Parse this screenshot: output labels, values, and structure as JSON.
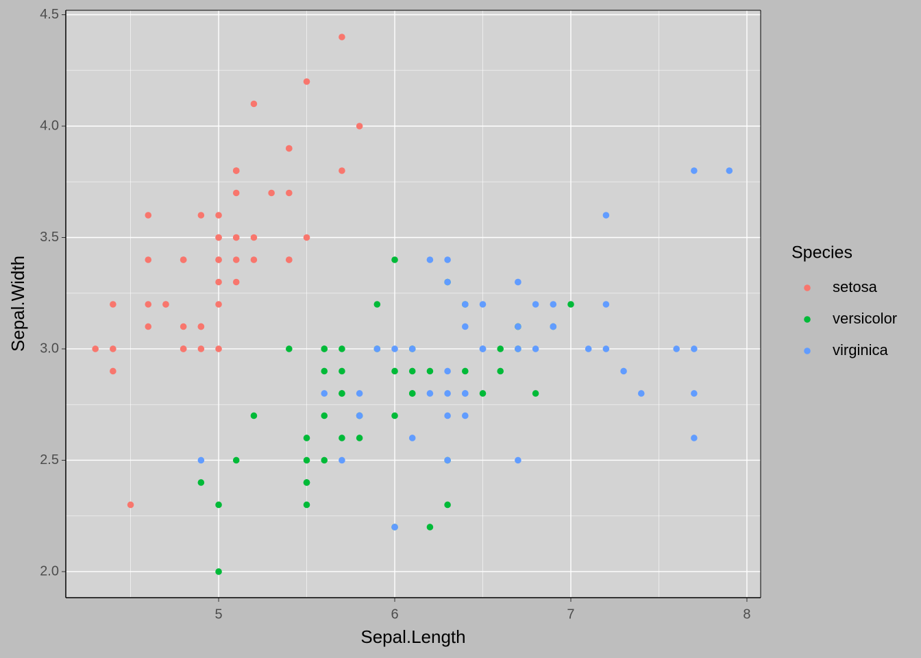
{
  "chart_data": {
    "type": "scatter",
    "x_label": "Sepal.Length",
    "y_label": "Sepal.Width",
    "legend_title": "Species",
    "xlim": [
      4.132,
      8.078
    ],
    "ylim": [
      1.883,
      4.52
    ],
    "xticks": [
      5,
      6,
      7,
      8
    ],
    "yticks": [
      {
        "value": 2,
        "label": "2.0"
      },
      {
        "value": 2.5,
        "label": "2.5"
      },
      {
        "value": 3,
        "label": "3.0"
      },
      {
        "value": 3.5,
        "label": "3.5"
      },
      {
        "value": 4,
        "label": "4.0"
      },
      {
        "value": 4.5,
        "label": "4.5"
      }
    ],
    "grid": true,
    "legend": "right",
    "series": [
      {
        "name": "setosa",
        "color": "#F8766D",
        "x": [
          5.1,
          4.9,
          4.7,
          4.6,
          5.0,
          5.4,
          4.6,
          5.0,
          4.4,
          4.9,
          5.4,
          4.8,
          4.8,
          4.3,
          5.8,
          5.7,
          5.4,
          5.1,
          5.7,
          5.1,
          5.4,
          5.1,
          4.6,
          5.1,
          4.8,
          5.0,
          5.0,
          5.2,
          5.2,
          4.7,
          4.8,
          5.4,
          5.2,
          5.5,
          4.9,
          5.0,
          5.5,
          4.9,
          4.4,
          5.1,
          5.0,
          4.5,
          4.4,
          5.0,
          5.1,
          4.8,
          5.1,
          4.6,
          5.3,
          5.0
        ],
        "values": [
          3.5,
          3.0,
          3.2,
          3.1,
          3.6,
          3.9,
          3.4,
          3.4,
          2.9,
          3.1,
          3.7,
          3.4,
          3.0,
          3.0,
          4.0,
          4.4,
          3.9,
          3.5,
          3.8,
          3.8,
          3.4,
          3.7,
          3.6,
          3.3,
          3.4,
          3.0,
          3.4,
          3.5,
          3.4,
          3.2,
          3.1,
          3.4,
          4.1,
          4.2,
          3.1,
          3.2,
          3.5,
          3.6,
          3.0,
          3.4,
          3.5,
          2.3,
          3.2,
          3.5,
          3.8,
          3.0,
          3.8,
          3.2,
          3.7,
          3.3
        ]
      },
      {
        "name": "versicolor",
        "color": "#00BA38",
        "x": [
          7.0,
          6.4,
          6.9,
          5.5,
          6.5,
          5.7,
          6.3,
          4.9,
          6.6,
          5.2,
          5.0,
          5.9,
          6.0,
          6.1,
          5.6,
          6.7,
          5.6,
          5.8,
          6.2,
          5.6,
          5.9,
          6.1,
          6.3,
          6.1,
          6.4,
          6.6,
          6.8,
          6.7,
          6.0,
          5.7,
          5.5,
          5.5,
          5.8,
          6.0,
          5.4,
          6.0,
          6.7,
          6.3,
          5.6,
          5.5,
          5.5,
          6.1,
          5.8,
          5.0,
          5.6,
          5.7,
          5.7,
          6.2,
          5.1,
          5.7
        ],
        "values": [
          3.2,
          3.2,
          3.1,
          2.3,
          2.8,
          2.8,
          3.3,
          2.4,
          2.9,
          2.7,
          2.0,
          3.0,
          2.2,
          2.9,
          2.9,
          3.1,
          3.0,
          2.7,
          2.2,
          2.5,
          3.2,
          2.8,
          2.5,
          2.8,
          2.9,
          3.0,
          2.8,
          3.0,
          2.9,
          2.6,
          2.4,
          2.4,
          2.7,
          2.7,
          3.0,
          3.4,
          3.1,
          2.3,
          3.0,
          2.5,
          2.6,
          3.0,
          2.6,
          2.3,
          2.7,
          3.0,
          2.9,
          2.9,
          2.5,
          2.8
        ]
      },
      {
        "name": "virginica",
        "color": "#619CFF",
        "x": [
          6.3,
          5.8,
          7.1,
          6.3,
          6.5,
          7.6,
          4.9,
          7.3,
          6.7,
          7.2,
          6.5,
          6.4,
          6.8,
          5.7,
          5.8,
          6.4,
          6.5,
          7.7,
          7.7,
          6.0,
          6.9,
          5.6,
          7.7,
          6.3,
          6.7,
          7.2,
          6.2,
          6.1,
          6.4,
          7.2,
          7.4,
          7.9,
          6.4,
          6.3,
          6.1,
          7.7,
          6.3,
          6.4,
          6.0,
          6.9,
          6.7,
          6.9,
          5.8,
          6.8,
          6.7,
          6.7,
          6.3,
          6.5,
          6.2,
          5.9
        ],
        "values": [
          3.3,
          2.7,
          3.0,
          2.9,
          3.0,
          3.0,
          2.5,
          2.9,
          2.5,
          3.6,
          3.2,
          2.7,
          3.0,
          2.5,
          2.8,
          3.2,
          3.0,
          3.8,
          2.6,
          2.2,
          3.2,
          2.8,
          2.8,
          2.7,
          3.3,
          3.2,
          2.8,
          3.0,
          2.8,
          3.0,
          2.8,
          3.8,
          2.8,
          2.8,
          2.6,
          3.0,
          3.4,
          3.1,
          3.0,
          3.1,
          3.1,
          3.1,
          2.7,
          3.2,
          3.3,
          3.0,
          2.5,
          3.0,
          3.4,
          3.0
        ]
      }
    ]
  }
}
